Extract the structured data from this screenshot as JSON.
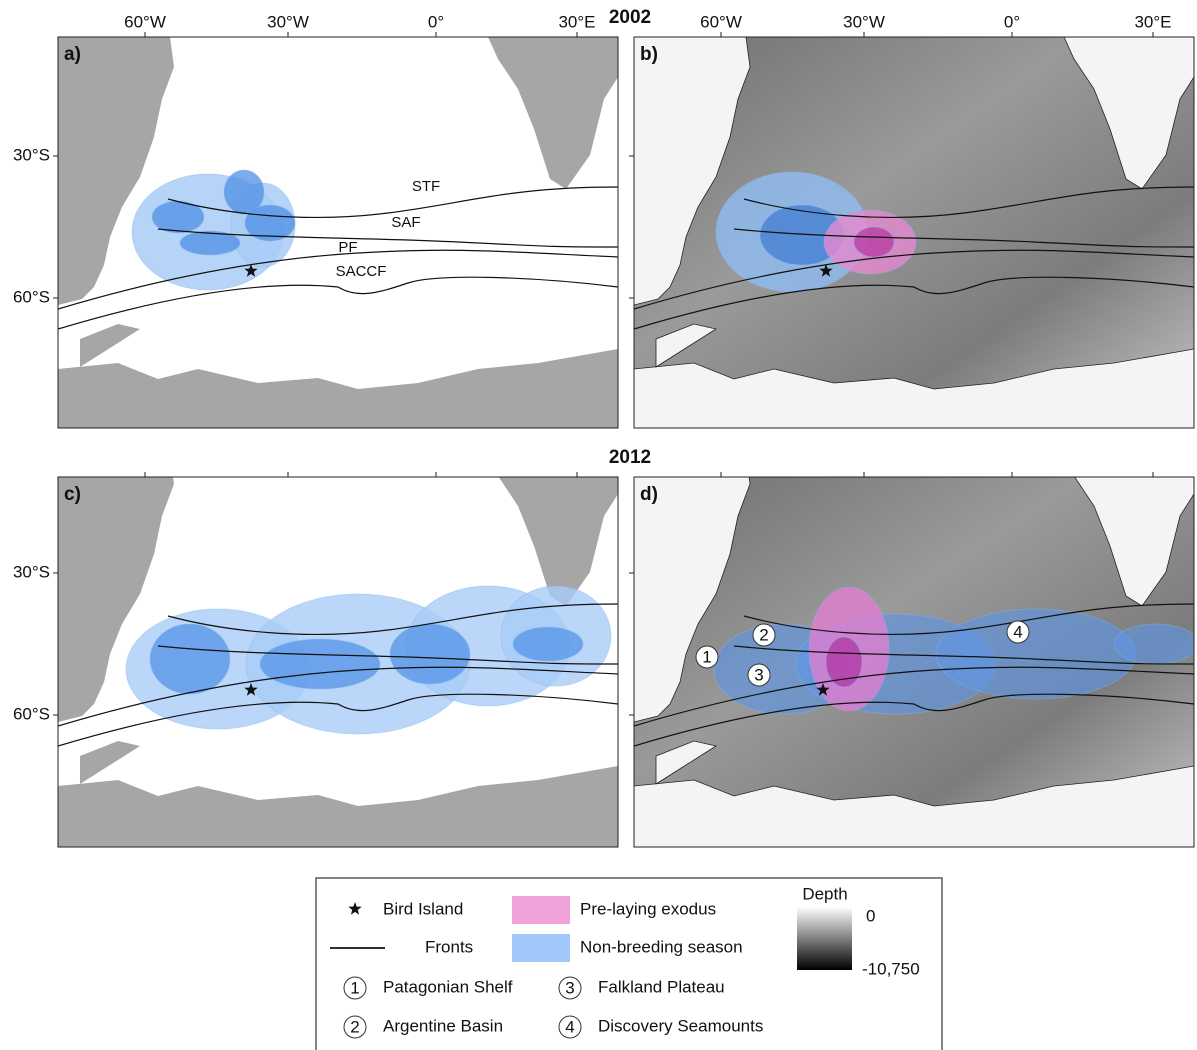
{
  "figure": {
    "years": [
      "2002",
      "2012"
    ],
    "panels": [
      "a)",
      "b)",
      "c)",
      "d)"
    ],
    "lon_ticks": [
      "60°W",
      "30°W",
      "0°",
      "30°E"
    ],
    "lat_ticks": [
      "30°S",
      "60°S"
    ],
    "fronts": [
      "STF",
      "SAF",
      "PF",
      "SACCF"
    ],
    "features": [
      {
        "number": "1",
        "name": "Patagonian Shelf"
      },
      {
        "number": "2",
        "name": "Argentine Basin"
      },
      {
        "number": "3",
        "name": "Falkland Plateau"
      },
      {
        "number": "4",
        "name": "Discovery Seamounts"
      }
    ]
  },
  "legend": {
    "bird_island": "Bird Island",
    "fronts": "Fronts",
    "pre_laying": "Pre-laying exodus",
    "non_breeding": "Non-breeding season",
    "depth_title": "Depth",
    "depth_max": "0",
    "depth_min": "-10,750"
  }
}
